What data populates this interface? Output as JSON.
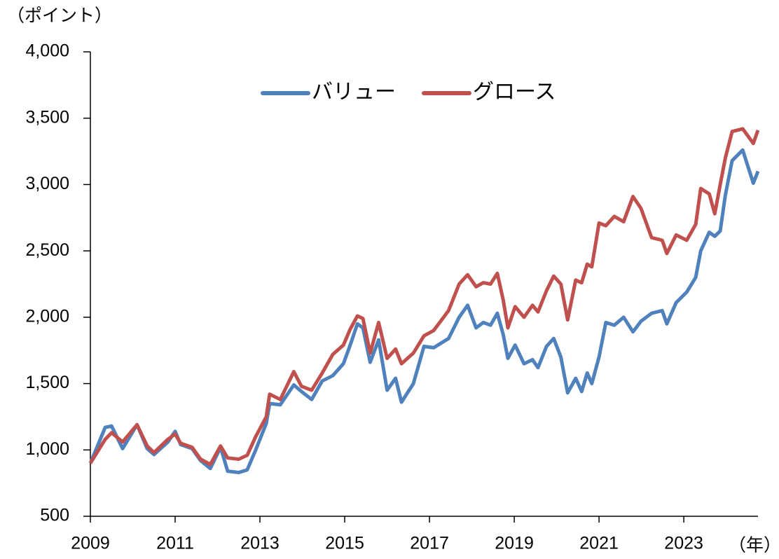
{
  "chart_data": {
    "type": "line",
    "y_unit": "（ポイント）",
    "x_unit": "（年）",
    "x": [
      2009.0,
      2009.35,
      2009.5,
      2009.76,
      2010.1,
      2010.34,
      2010.5,
      2010.83,
      2011.0,
      2011.13,
      2011.4,
      2011.6,
      2011.83,
      2012.07,
      2012.24,
      2012.5,
      2012.7,
      2012.9,
      2013.15,
      2013.23,
      2013.48,
      2013.8,
      2013.98,
      2014.22,
      2014.47,
      2014.72,
      2014.97,
      2015.13,
      2015.3,
      2015.43,
      2015.6,
      2015.8,
      2016.0,
      2016.2,
      2016.34,
      2016.62,
      2016.87,
      2017.1,
      2017.45,
      2017.7,
      2017.9,
      2018.1,
      2018.27,
      2018.44,
      2018.6,
      2018.74,
      2018.85,
      2019.02,
      2019.23,
      2019.43,
      2019.56,
      2019.76,
      2019.93,
      2020.1,
      2020.26,
      2020.45,
      2020.59,
      2020.72,
      2020.83,
      2021.0,
      2021.16,
      2021.36,
      2021.58,
      2021.8,
      2021.99,
      2022.24,
      2022.49,
      2022.6,
      2022.82,
      2023.07,
      2023.28,
      2023.4,
      2023.6,
      2023.73,
      2023.86,
      2023.98,
      2024.14,
      2024.39,
      2024.64,
      2024.75
    ],
    "series": [
      {
        "name": "バリュー",
        "color": "#4f81bd",
        "values": [
          900,
          1170,
          1180,
          1010,
          1190,
          1010,
          965,
          1060,
          1140,
          1040,
          1010,
          920,
          860,
          1020,
          840,
          830,
          850,
          1000,
          1200,
          1350,
          1340,
          1490,
          1440,
          1380,
          1520,
          1560,
          1650,
          1790,
          1950,
          1920,
          1660,
          1830,
          1450,
          1540,
          1360,
          1500,
          1780,
          1770,
          1840,
          2000,
          2090,
          1920,
          1960,
          1940,
          2030,
          1870,
          1690,
          1790,
          1650,
          1680,
          1620,
          1780,
          1840,
          1700,
          1430,
          1540,
          1440,
          1580,
          1500,
          1700,
          1960,
          1940,
          2000,
          1890,
          1970,
          2030,
          2050,
          1950,
          2110,
          2190,
          2300,
          2500,
          2640,
          2610,
          2650,
          2920,
          3180,
          3260,
          3010,
          3100
        ]
      },
      {
        "name": "グロース",
        "color": "#c0504d",
        "values": [
          900,
          1080,
          1130,
          1060,
          1190,
          1030,
          980,
          1080,
          1120,
          1050,
          1020,
          930,
          890,
          1030,
          940,
          930,
          960,
          1100,
          1250,
          1420,
          1380,
          1590,
          1480,
          1450,
          1580,
          1720,
          1790,
          1910,
          2010,
          1990,
          1730,
          1960,
          1690,
          1760,
          1650,
          1730,
          1860,
          1900,
          2050,
          2250,
          2320,
          2230,
          2260,
          2250,
          2330,
          2130,
          1920,
          2080,
          2000,
          2090,
          2040,
          2200,
          2310,
          2250,
          1980,
          2280,
          2260,
          2400,
          2380,
          2710,
          2690,
          2760,
          2720,
          2910,
          2820,
          2600,
          2580,
          2480,
          2620,
          2580,
          2700,
          2970,
          2930,
          2780,
          3000,
          3200,
          3400,
          3420,
          3310,
          3410
        ]
      }
    ],
    "xlim": [
      2009,
      2024.75
    ],
    "xticks": [
      2009,
      2011,
      2013,
      2015,
      2017,
      2019,
      2021,
      2023
    ],
    "ylim": [
      500,
      4000
    ],
    "yticks": [
      500,
      {
        "value": 1000,
        "label": "1,000"
      },
      {
        "value": 1500,
        "label": "1,500"
      },
      {
        "value": 2000,
        "label": "2,000"
      },
      {
        "value": 2500,
        "label": "2,500"
      },
      {
        "value": 3000,
        "label": "3,000"
      },
      {
        "value": 3500,
        "label": "3,500"
      },
      {
        "value": 4000,
        "label": "4,000"
      }
    ],
    "grid": false,
    "legend": "top"
  }
}
